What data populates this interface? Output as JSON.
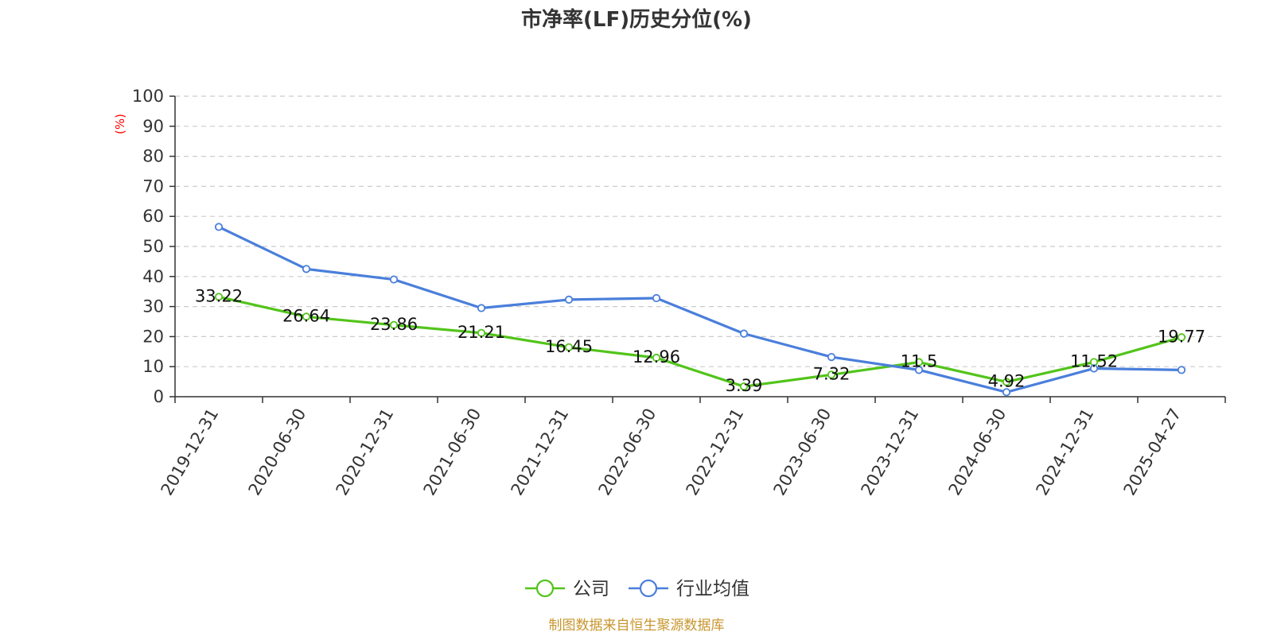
{
  "title": "市净率(LF)历史分位(%)",
  "source": "制图数据来自恒生聚源数据库",
  "colors": {
    "company": "#52c41a",
    "industry": "#4a7fdb",
    "axis": "#333333",
    "grid": "#cccccc",
    "unit": "#ff0000",
    "source": "#c8962d",
    "title": "#333333"
  },
  "chart_data": {
    "type": "line",
    "title": "市净率(LF)历史分位(%)",
    "ylabel": "(%)",
    "xlabel": "",
    "ylim": [
      0,
      100
    ],
    "yticks": [
      0,
      10,
      20,
      30,
      40,
      50,
      60,
      70,
      80,
      90,
      100
    ],
    "grid": true,
    "legend_position": "bottom-center",
    "categories": [
      "2019-12-31",
      "2020-06-30",
      "2020-12-31",
      "2021-06-30",
      "2021-12-31",
      "2022-06-30",
      "2022-12-31",
      "2023-06-30",
      "2023-12-31",
      "2024-06-30",
      "2024-12-31",
      "2025-04-27"
    ],
    "series": [
      {
        "name": "公司",
        "color": "#52c41a",
        "values": [
          33.22,
          26.64,
          23.86,
          21.21,
          16.45,
          12.96,
          3.39,
          7.32,
          11.5,
          4.92,
          11.52,
          19.77
        ],
        "labels": [
          "33.22",
          "26.64",
          "23.86",
          "21.21",
          "16.45",
          "12.96",
          "3.39",
          "7.32",
          "11.5",
          "4.92",
          "11.52",
          "19.77"
        ]
      },
      {
        "name": "行业均值",
        "color": "#4a7fdb",
        "values": [
          56.5,
          42.5,
          39,
          29.5,
          32.3,
          32.8,
          21,
          13.2,
          8.9,
          1.5,
          9.4,
          8.9
        ]
      }
    ]
  }
}
